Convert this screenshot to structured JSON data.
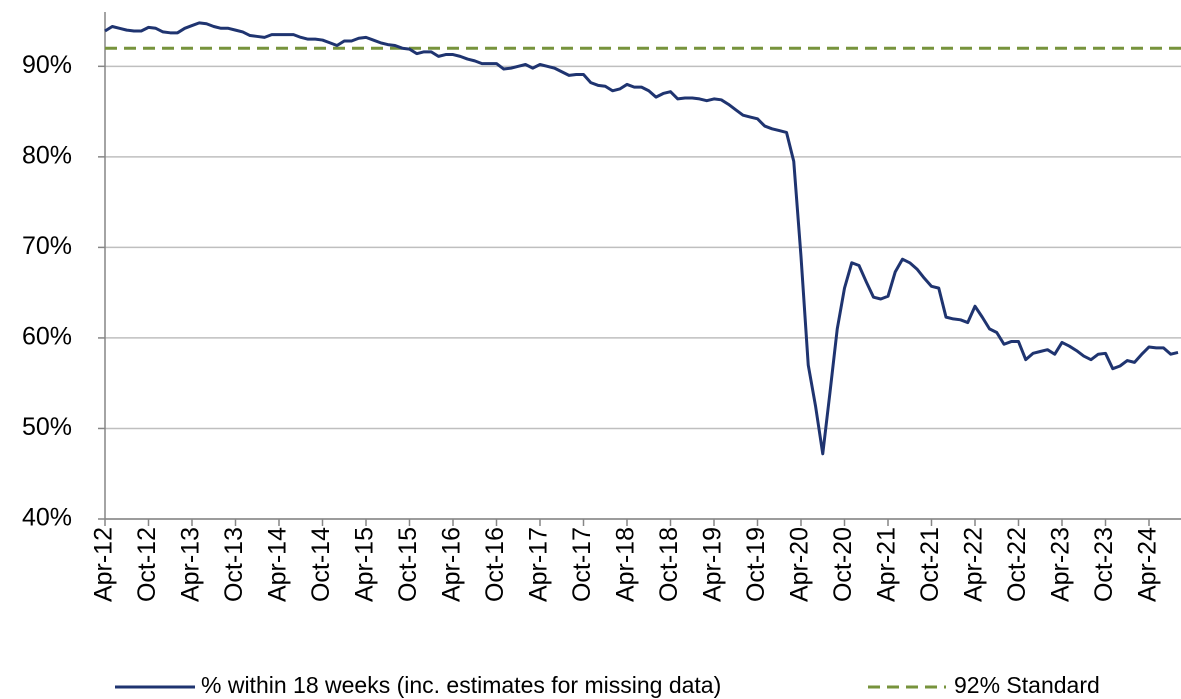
{
  "chart_data": {
    "type": "line",
    "categories": [
      "Apr-12",
      null,
      null,
      null,
      null,
      null,
      "Oct-12",
      null,
      null,
      null,
      null,
      null,
      "Apr-13",
      null,
      null,
      null,
      null,
      null,
      "Oct-13",
      null,
      null,
      null,
      null,
      null,
      "Apr-14",
      null,
      null,
      null,
      null,
      null,
      "Oct-14",
      null,
      null,
      null,
      null,
      null,
      "Apr-15",
      null,
      null,
      null,
      null,
      null,
      "Oct-15",
      null,
      null,
      null,
      null,
      null,
      "Apr-16",
      null,
      null,
      null,
      null,
      null,
      "Oct-16",
      null,
      null,
      null,
      null,
      null,
      "Apr-17",
      null,
      null,
      null,
      null,
      null,
      "Oct-17",
      null,
      null,
      null,
      null,
      null,
      "Apr-18",
      null,
      null,
      null,
      null,
      null,
      "Oct-18",
      null,
      null,
      null,
      null,
      null,
      "Apr-19",
      null,
      null,
      null,
      null,
      null,
      "Oct-19",
      null,
      null,
      null,
      null,
      null,
      "Apr-20",
      null,
      null,
      null,
      null,
      null,
      "Oct-20",
      null,
      null,
      null,
      null,
      null,
      "Apr-21",
      null,
      null,
      null,
      null,
      null,
      "Oct-21",
      null,
      null,
      null,
      null,
      null,
      "Apr-22",
      null,
      null,
      null,
      null,
      null,
      "Oct-22",
      null,
      null,
      null,
      null,
      null,
      "Apr-23",
      null,
      null,
      null,
      null,
      null,
      "Oct-23",
      null,
      null,
      null,
      null,
      null,
      "Apr-24",
      null,
      null,
      null,
      null
    ],
    "series": [
      {
        "name": "% within 18 weeks (inc. estimates for missing data)",
        "color": "#1f3470",
        "values": [
          93.9,
          94.4,
          94.2,
          94.0,
          93.9,
          93.9,
          94.3,
          94.2,
          93.8,
          93.7,
          93.7,
          94.2,
          94.5,
          94.8,
          94.7,
          94.4,
          94.2,
          94.2,
          94.0,
          93.8,
          93.4,
          93.3,
          93.2,
          93.5,
          93.5,
          93.5,
          93.5,
          93.2,
          93.0,
          93.0,
          92.9,
          92.6,
          92.3,
          92.8,
          92.8,
          93.1,
          93.2,
          92.9,
          92.6,
          92.4,
          92.3,
          92.0,
          91.9,
          91.4,
          91.6,
          91.6,
          91.1,
          91.3,
          91.3,
          91.1,
          90.8,
          90.6,
          90.3,
          90.3,
          90.3,
          89.7,
          89.8,
          90.0,
          90.2,
          89.8,
          90.2,
          90.0,
          89.8,
          89.4,
          89.0,
          89.1,
          89.1,
          88.2,
          87.9,
          87.8,
          87.3,
          87.5,
          88.0,
          87.7,
          87.7,
          87.3,
          86.6,
          87.0,
          87.2,
          86.4,
          86.5,
          86.5,
          86.4,
          86.2,
          86.4,
          86.3,
          85.8,
          85.2,
          84.6,
          84.4,
          84.2,
          83.4,
          83.1,
          82.9,
          82.7,
          79.5,
          69.0,
          57.0,
          52.5,
          47.2,
          54.0,
          61.0,
          65.5,
          68.3,
          68.0,
          66.2,
          64.5,
          64.3,
          64.6,
          67.3,
          68.7,
          68.3,
          67.6,
          66.6,
          65.7,
          65.5,
          62.3,
          62.1,
          62.0,
          61.7,
          63.5,
          62.3,
          61.0,
          60.6,
          59.3,
          59.6,
          59.6,
          57.6,
          58.3,
          58.5,
          58.7,
          58.2,
          59.5,
          59.1,
          58.6,
          58.0,
          57.6,
          58.2,
          58.3,
          56.6,
          56.9,
          57.5,
          57.3,
          58.2,
          59.0,
          58.9,
          58.9,
          58.2,
          58.4
        ]
      }
    ],
    "reference_lines": [
      {
        "name": "92% Standard",
        "value": 92,
        "color": "#77933c",
        "dashed": true
      }
    ],
    "ylim": [
      40,
      96
    ],
    "yticks": [
      {
        "value": 40,
        "label": "40%"
      },
      {
        "value": 50,
        "label": "50%"
      },
      {
        "value": 60,
        "label": "60%"
      },
      {
        "value": 70,
        "label": "70%"
      },
      {
        "value": 80,
        "label": "80%"
      },
      {
        "value": 90,
        "label": "90%"
      }
    ],
    "grid": true,
    "legend": "bottom"
  }
}
